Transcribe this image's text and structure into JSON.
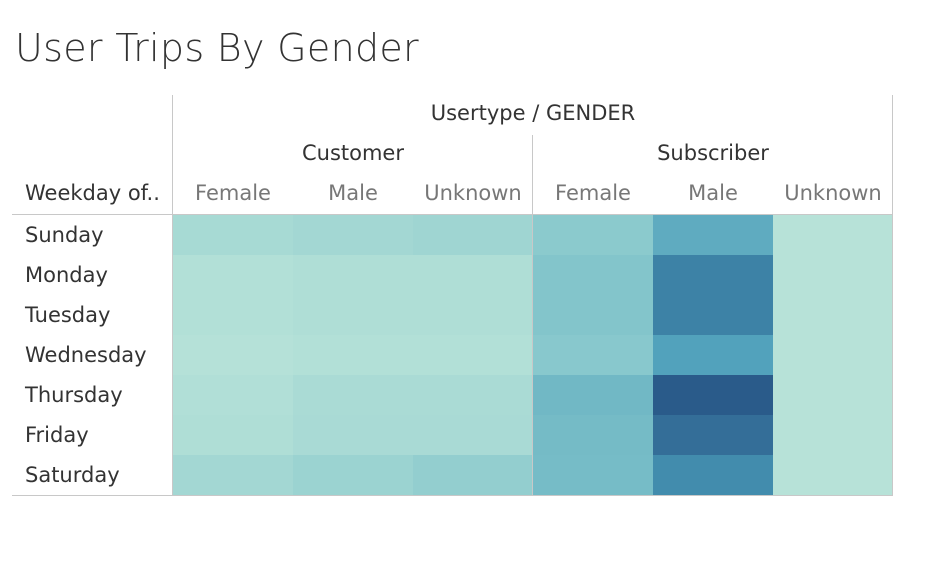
{
  "title": "User Trips By Gender",
  "header": {
    "top_label": "Usertype / GENDER",
    "row_header_label": "Weekday of..",
    "groups": [
      "Customer",
      "Subscriber"
    ],
    "genders": [
      "Female",
      "Male",
      "Unknown"
    ]
  },
  "chart_data": {
    "type": "heatmap",
    "title": "User Trips By Gender",
    "rows": [
      "Sunday",
      "Monday",
      "Tuesday",
      "Wednesday",
      "Thursday",
      "Friday",
      "Saturday"
    ],
    "columns": [
      {
        "usertype": "Customer",
        "gender": "Female"
      },
      {
        "usertype": "Customer",
        "gender": "Male"
      },
      {
        "usertype": "Customer",
        "gender": "Unknown"
      },
      {
        "usertype": "Subscriber",
        "gender": "Female"
      },
      {
        "usertype": "Subscriber",
        "gender": "Male"
      },
      {
        "usertype": "Subscriber",
        "gender": "Unknown"
      }
    ],
    "intensity": [
      [
        0.12,
        0.15,
        0.17,
        0.3,
        0.55,
        0.02
      ],
      [
        0.05,
        0.07,
        0.07,
        0.35,
        0.8,
        0.02
      ],
      [
        0.05,
        0.07,
        0.07,
        0.35,
        0.8,
        0.02
      ],
      [
        0.03,
        0.05,
        0.05,
        0.32,
        0.62,
        0.02
      ],
      [
        0.06,
        0.1,
        0.1,
        0.45,
        1.0,
        0.02
      ],
      [
        0.07,
        0.11,
        0.11,
        0.43,
        0.9,
        0.02
      ],
      [
        0.15,
        0.2,
        0.25,
        0.42,
        0.75,
        0.02
      ]
    ],
    "color_scale": [
      "#bae4d9",
      "#86c7cc",
      "#4a9cb9",
      "#2a5b8a"
    ]
  }
}
